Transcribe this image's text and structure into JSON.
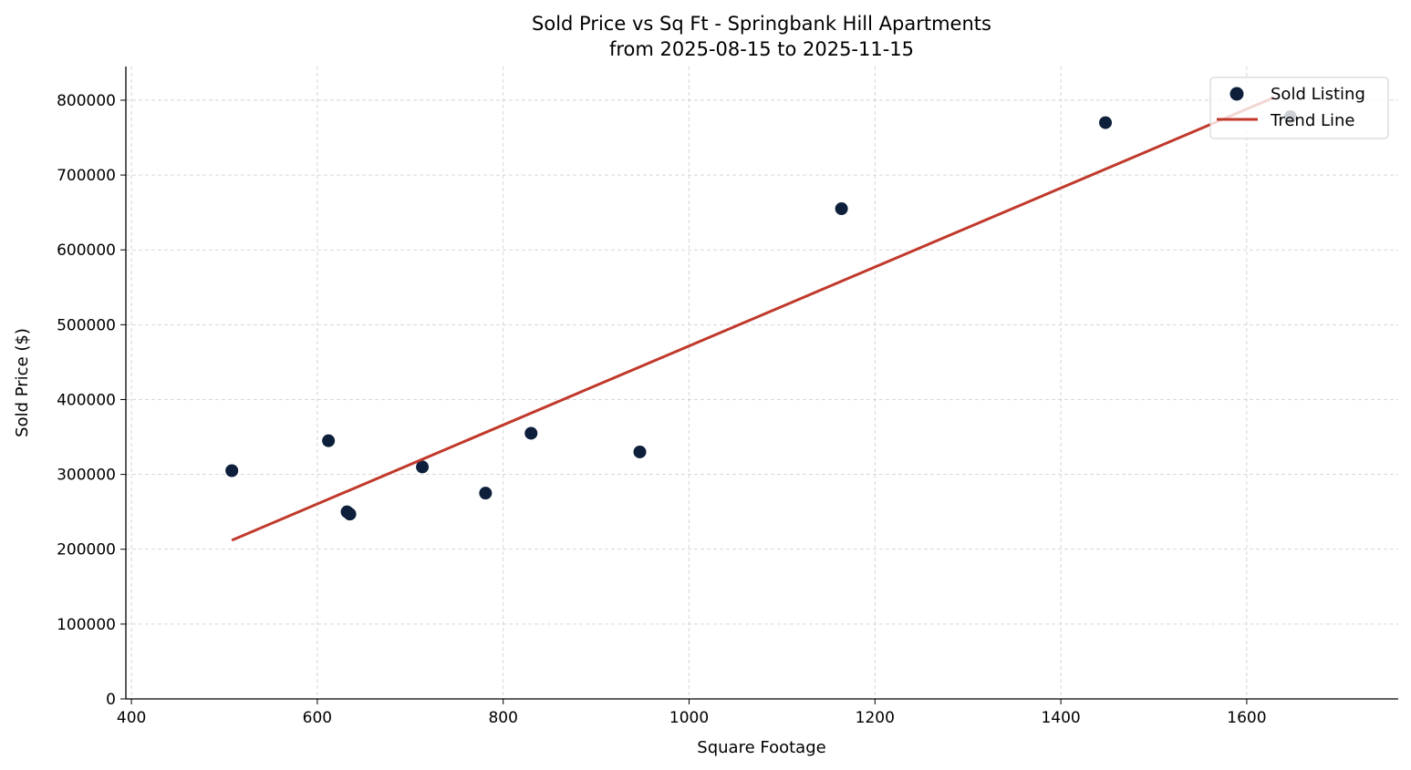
{
  "chart_data": {
    "type": "scatter",
    "title": "Sold Price vs Sq Ft - Springbank Hill Apartments",
    "subtitle": "from 2025-08-15 to 2025-11-15",
    "xlabel": "Square Footage",
    "ylabel": "Sold Price ($)",
    "xlim": [
      394,
      1763
    ],
    "ylim": [
      0,
      845000
    ],
    "xticks": [
      400,
      600,
      800,
      1000,
      1200,
      1400,
      1600
    ],
    "yticks": [
      0,
      100000,
      200000,
      300000,
      400000,
      500000,
      600000,
      700000,
      800000
    ],
    "grid": true,
    "legend_position": "top-right",
    "series": [
      {
        "name": "Sold Listing",
        "kind": "scatter",
        "color": "#0d1f3a",
        "points": [
          [
            508,
            305000
          ],
          [
            612,
            345000
          ],
          [
            632,
            250000
          ],
          [
            635,
            247000
          ],
          [
            713,
            310000
          ],
          [
            781,
            275000
          ],
          [
            830,
            355000
          ],
          [
            947,
            330000
          ],
          [
            1164,
            655000
          ],
          [
            1448,
            770000
          ],
          [
            1647,
            778000
          ]
        ]
      },
      {
        "name": "Trend Line",
        "kind": "line",
        "color": "#c0392b",
        "points": [
          [
            508,
            212000
          ],
          [
            1630,
            804000
          ]
        ]
      }
    ]
  }
}
